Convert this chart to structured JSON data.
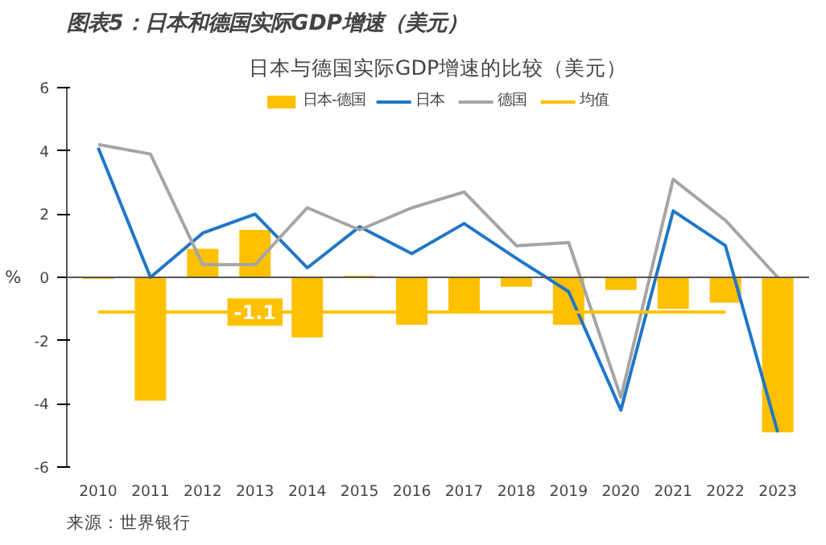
{
  "chart_data": {
    "type": "bar",
    "title": "图表5：日本和德国实际GDP增速（美元）",
    "subtitle": "日本与德国实际GDP增速的比较（美元）",
    "ylabel": "%",
    "categories": [
      "2010",
      "2011",
      "2012",
      "2013",
      "2014",
      "2015",
      "2016",
      "2017",
      "2018",
      "2019",
      "2020",
      "2021",
      "2022",
      "2023"
    ],
    "series": [
      {
        "name": "日本-德国",
        "color": "#ffc000",
        "values": [
          -0.05,
          -3.9,
          0.9,
          1.5,
          -1.9,
          0.05,
          -1.5,
          -1.1,
          -0.3,
          -1.5,
          -0.4,
          -1.0,
          -0.8,
          -4.9
        ]
      },
      {
        "name": "日本",
        "type": "line",
        "color": "#1f77c8",
        "values": [
          4.1,
          0.0,
          1.4,
          2.0,
          0.3,
          1.6,
          0.75,
          1.7,
          0.6,
          -0.45,
          -4.2,
          2.1,
          1.0,
          -4.9
        ]
      },
      {
        "name": "德国",
        "type": "line",
        "color": "#a5a5a5",
        "values": [
          4.2,
          3.9,
          0.4,
          0.4,
          2.2,
          1.5,
          2.2,
          2.7,
          1.0,
          1.1,
          -3.8,
          3.1,
          1.8,
          0.0
        ]
      },
      {
        "name": "均值",
        "type": "line",
        "color": "#ffc000",
        "values": [
          -1.1,
          -1.1,
          -1.1,
          -1.1,
          -1.1,
          -1.1,
          -1.1,
          -1.1,
          -1.1,
          -1.1,
          -1.1,
          -1.1,
          -1.1,
          null
        ]
      }
    ],
    "ylim": [
      -6,
      6
    ],
    "yticks": [
      -6,
      -4,
      -2,
      0,
      2,
      4,
      6
    ],
    "legend": "top",
    "annotations": [
      {
        "text": "-1.1",
        "x": "2013",
        "y": -1.1
      },
      "来源：世界银行"
    ]
  }
}
